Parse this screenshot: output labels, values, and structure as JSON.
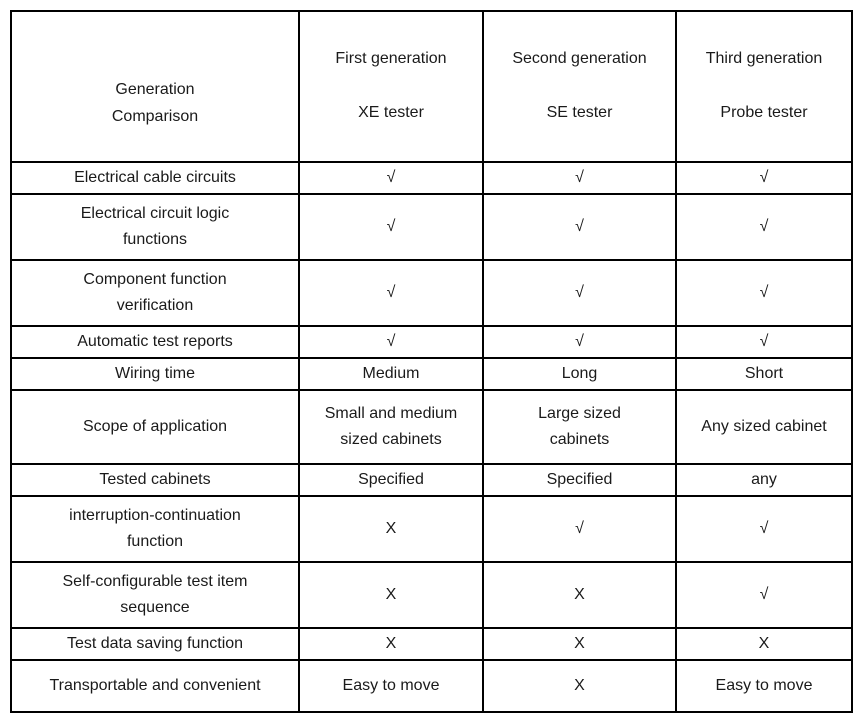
{
  "page": {
    "background_color": "#ffffff",
    "text_color": "#1a1a1a",
    "border_color": "#000000"
  },
  "table": {
    "corner_header": "Generation\nComparison",
    "column_headers": [
      {
        "generation": "First generation",
        "tester": "XE tester"
      },
      {
        "generation": "Second generation",
        "tester": "SE tester"
      },
      {
        "generation": "Third generation",
        "tester": "Probe tester"
      }
    ],
    "symbols": {
      "supported": "√",
      "not_supported": "X"
    },
    "rows": [
      {
        "label": "Electrical cable circuits",
        "values": [
          "√",
          "√",
          "√"
        ]
      },
      {
        "label": "Electrical circuit logic\nfunctions",
        "values": [
          "√",
          "√",
          "√"
        ]
      },
      {
        "label": "Component function\nverification",
        "values": [
          "√",
          "√",
          "√"
        ]
      },
      {
        "label": "Automatic test reports",
        "values": [
          "√",
          "√",
          "√"
        ]
      },
      {
        "label": "Wiring time",
        "values": [
          "Medium",
          "Long",
          "Short"
        ]
      },
      {
        "label": "Scope of application",
        "values": [
          "Small and medium\nsized cabinets",
          "Large sized\ncabinets",
          "Any sized cabinet"
        ]
      },
      {
        "label": "Tested cabinets",
        "values": [
          "Specified",
          "Specified",
          "any"
        ]
      },
      {
        "label": "interruption-continuation\nfunction",
        "values": [
          "X",
          "√",
          "√"
        ]
      },
      {
        "label": "Self-configurable test item\nsequence",
        "values": [
          "X",
          "X",
          "√"
        ]
      },
      {
        "label": "Test data saving function",
        "values": [
          "X",
          "X",
          "X"
        ]
      },
      {
        "label": "Transportable and convenient",
        "values": [
          "Easy to move",
          "X",
          "Easy to move"
        ]
      }
    ]
  }
}
